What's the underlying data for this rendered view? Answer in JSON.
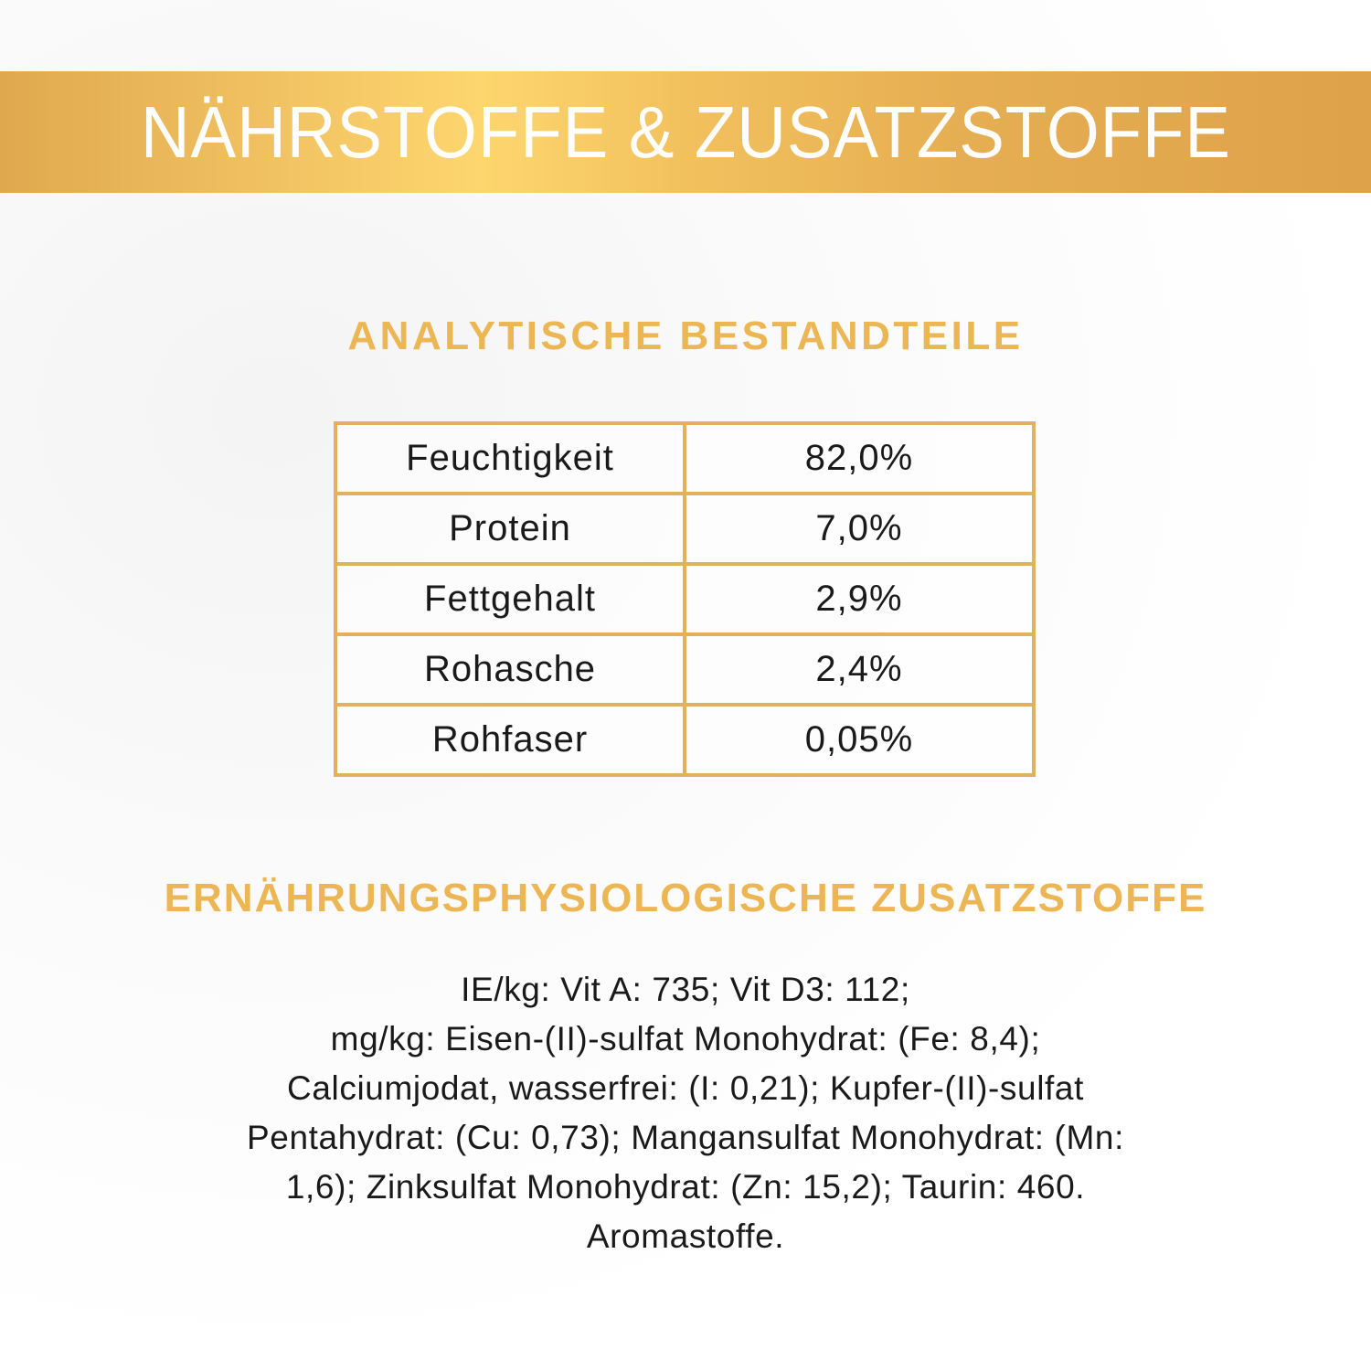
{
  "banner": {
    "title": "NÄHRSTOFFE & ZUSATZSTOFFE"
  },
  "analytical": {
    "heading": "ANALYTISCHE BESTANDTEILE",
    "rows": [
      {
        "name": "Feuchtigkeit",
        "value": "82,0%"
      },
      {
        "name": "Protein",
        "value": "7,0%"
      },
      {
        "name": "Fettgehalt",
        "value": "2,9%"
      },
      {
        "name": "Rohasche",
        "value": "2,4%"
      },
      {
        "name": "Rohfaser",
        "value": "0,05%"
      }
    ]
  },
  "additives": {
    "heading": "ERNÄHRUNGSPHYSIOLOGISCHE ZUSATZSTOFFE",
    "lines": [
      "IE/kg: Vit A: 735; Vit D3: 112;",
      "mg/kg: Eisen-(II)-sulfat Monohydrat: (Fe: 8,4);",
      "Calciumjodat, wasserfrei: (I: 0,21); Kupfer-(II)-sulfat",
      "Pentahydrat: (Cu: 0,73); Mangansulfat Monohydrat: (Mn:",
      "1,6); Zinksulfat Monohydrat: (Zn: 15,2); Taurin: 460.",
      "Aromastoffe."
    ]
  },
  "colors": {
    "gold": "#ebb653",
    "banner_gold": "#f1c262",
    "border_gold": "#e2b15e"
  }
}
